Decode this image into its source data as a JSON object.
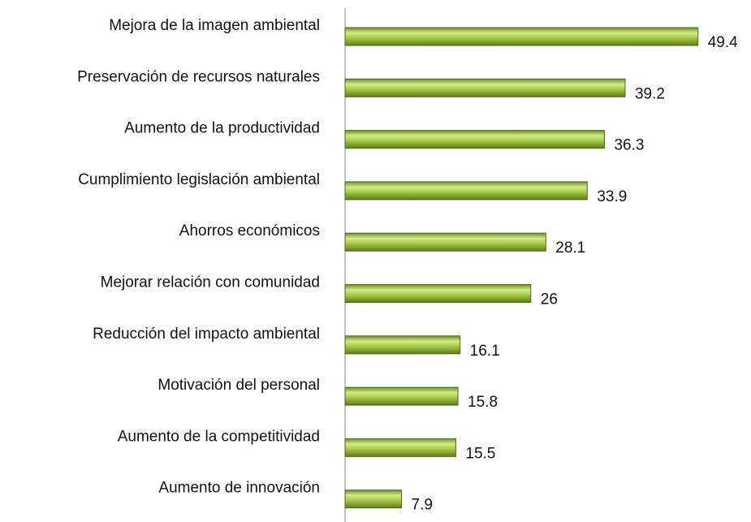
{
  "chart_data": {
    "type": "bar",
    "orientation": "horizontal",
    "categories": [
      "Mejora de la imagen ambiental",
      "Preservación de recursos naturales",
      "Aumento de la productividad",
      "Cumplimiento legislación ambiental",
      "Ahorros económicos",
      "Mejorar relación con comunidad",
      "Reducción del impacto ambiental",
      "Motivación del personal",
      "Aumento de la competitividad",
      "Aumento de innovación"
    ],
    "values": [
      49.4,
      39.2,
      36.3,
      33.9,
      28.1,
      26,
      16.1,
      15.8,
      15.5,
      7.9
    ],
    "color": "#9bc23c",
    "xlim": [
      0,
      50
    ]
  }
}
